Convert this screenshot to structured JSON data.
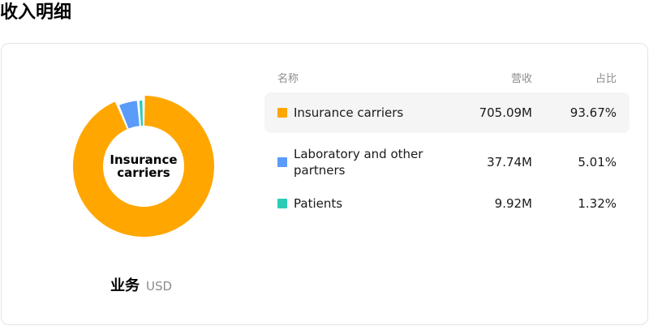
{
  "page": {
    "title": "收入明细"
  },
  "table": {
    "headers": {
      "name": "名称",
      "revenue": "营收",
      "share": "占比"
    },
    "rows": [
      {
        "name": "Insurance carriers",
        "revenue": "705.09M",
        "share": "93.67%",
        "color": "#FFA600"
      },
      {
        "name": "Laboratory and other partners",
        "revenue": "37.74M",
        "share": "5.01%",
        "color": "#5B9BFA"
      },
      {
        "name": "Patients",
        "revenue": "9.92M",
        "share": "1.32%",
        "color": "#2CCCB7"
      }
    ]
  },
  "chart_data": {
    "type": "pie",
    "categories": [
      "Insurance carriers",
      "Laboratory and other partners",
      "Patients"
    ],
    "values": [
      705.09,
      37.74,
      9.92
    ],
    "percentages": [
      93.67,
      5.01,
      1.32
    ],
    "colors": [
      "#FFA600",
      "#5B9BFA",
      "#2CCCB7"
    ],
    "center_label": "Insurance carriers",
    "caption": "业务",
    "unit": "USD",
    "highlighted": "Insurance carriers"
  }
}
